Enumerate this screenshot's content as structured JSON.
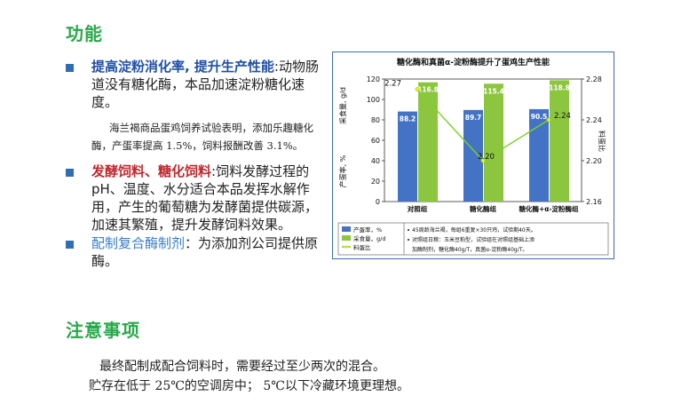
{
  "section1": {
    "title": "功能"
  },
  "items": [
    {
      "title": "提高淀粉消化率, 提升生产性能",
      "sep": ":",
      "text": "动物肠道没有糖化酶，本品加速淀粉糖化速度。"
    },
    {
      "title": "发酵饲料、糖化饲料",
      "sep": ":",
      "text": "饲料发酵过程的pH、温度、水分适合本品发挥水解作用，产生的葡萄糖为发酵菌提供碳源，加速其繁殖，提升发酵饲料效果。"
    },
    {
      "title": "配制复合酶制剂",
      "sep": "：",
      "text": "为添加剂公司提供原酶。"
    }
  ],
  "note": {
    "line1": "海兰褐商品蛋鸡饲养试验表明，添加乐趣糖化",
    "line2": "酶，产蛋率提高 1.5%，饲料报酬改善 3.1%。"
  },
  "section2": {
    "title": "注意事项"
  },
  "notices": [
    "最终配制成配合饲料时，需要经过至少两次的混合。",
    "贮存在低于 25℃的空调房中；  5℃以下冷藏环境更理想。"
  ],
  "chart_data": {
    "type": "bar",
    "title": "糖化酶和真菌α-淀粉酶提升了蛋鸡生产性能",
    "categories": [
      "对照组",
      "糖化酶组",
      "糖化酶+α-淀粉酶组"
    ],
    "series": [
      {
        "name": "产蛋率，%",
        "values": [
          88.2,
          89.7,
          90.5
        ],
        "color": "#4472c4",
        "axis": "left"
      },
      {
        "name": "采食量，g/d",
        "values": [
          116.8,
          115.4,
          118.8
        ],
        "color": "#8cc63f",
        "axis": "left"
      },
      {
        "name": "料蛋比",
        "type": "line",
        "values": [
          2.27,
          2.2,
          2.24
        ],
        "color": "#7bd12a",
        "axis": "right"
      }
    ],
    "y_left": {
      "label": "采食量, g/d",
      "label2": "产蛋率, %",
      "range": [
        0,
        120
      ],
      "ticks": [
        0,
        20,
        40,
        60,
        80,
        100,
        120
      ]
    },
    "y_right": {
      "label": "料蛋比",
      "range": [
        2.16,
        2.28
      ],
      "ticks": [
        "2.16",
        "2.20",
        "2.24",
        "2.28"
      ]
    },
    "value_labels_left": [
      "88.2",
      "89.7",
      "90.5"
    ],
    "value_labels_right": [
      "116.8",
      "115.4",
      "118.8"
    ],
    "line_labels": [
      "2.27",
      "2.20",
      "2.24"
    ],
    "legend_left": [
      "产蛋率，%",
      "采食量，g/d",
      "料蛋比"
    ],
    "footnotes": [
      "45周龄海兰褐，每组6重复×30只鸡，试验期40天。",
      "对照组日粮：玉米豆粕型，试验组在对照组基础上添",
      "加酶制剂，糖化酶40g/T，真菌α-淀粉酶40g/T。"
    ]
  }
}
